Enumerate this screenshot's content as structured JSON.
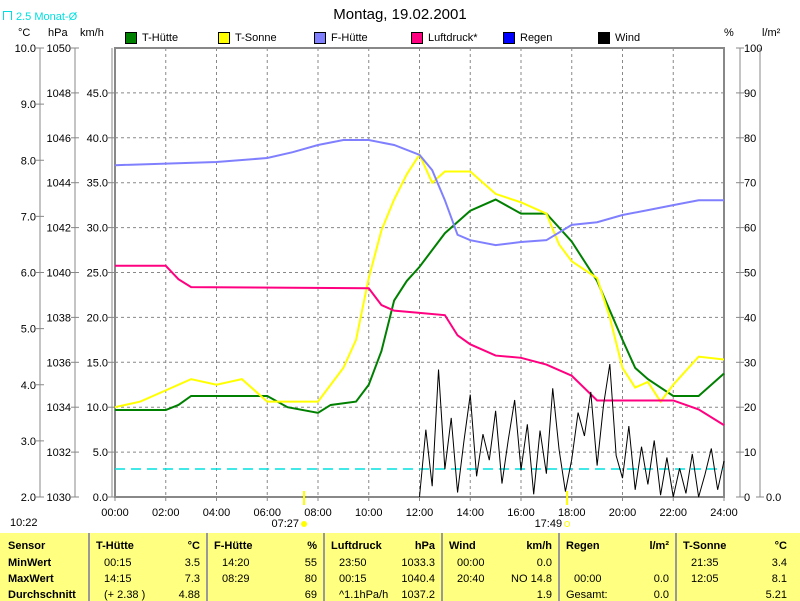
{
  "title": "Montag, 19.02.2001",
  "average_label": "2.5 Monat-Ø",
  "clock": "10:22",
  "units": {
    "temp": "°C",
    "pressure": "hPa",
    "wind": "km/h",
    "humidity": "%",
    "rain": "l/m²"
  },
  "legend": [
    {
      "label": "T-Hütte",
      "color": "#008000"
    },
    {
      "label": "T-Sonne",
      "color": "#ffff00"
    },
    {
      "label": "F-Hütte",
      "color": "#8080ff"
    },
    {
      "label": "Luftdruck*",
      "color": "#ff0080"
    },
    {
      "label": "Regen",
      "color": "#0000ff"
    },
    {
      "label": "Wind",
      "color": "#000000"
    }
  ],
  "sunrise": "07:27",
  "sunset": "17:49",
  "chart_data": {
    "type": "line",
    "title": "Montag, 19.02.2001",
    "x_ticks": [
      "00:00",
      "02:00",
      "04:00",
      "06:00",
      "08:00",
      "10:00",
      "12:00",
      "14:00",
      "16:00",
      "18:00",
      "20:00",
      "22:00",
      "24:00"
    ],
    "axes": {
      "temp": {
        "range": [
          2.0,
          10.0
        ],
        "ticks": [
          "10.0",
          "9.0",
          "8.0",
          "7.0",
          "6.0",
          "5.0",
          "4.0",
          "3.0",
          "2.0"
        ]
      },
      "pressure": {
        "range": [
          1030,
          1050
        ],
        "ticks": [
          "1050",
          "1048",
          "1046",
          "1044",
          "1042",
          "1040",
          "1038",
          "1036",
          "1034",
          "1032",
          "1030"
        ]
      },
      "wind": {
        "range": [
          0,
          50
        ],
        "ticks": [
          "45.0",
          "40.0",
          "35.0",
          "30.0",
          "25.0",
          "20.0",
          "15.0",
          "10.0",
          "5.0",
          "0.0"
        ]
      },
      "humidity": {
        "range": [
          0,
          100
        ],
        "ticks": [
          "100",
          "90",
          "80",
          "70",
          "60",
          "50",
          "40",
          "30",
          "20",
          "10",
          "0"
        ]
      },
      "rain": {
        "range": [
          0,
          1
        ],
        "ticks": [
          "0.0"
        ]
      }
    },
    "average_temp": 2.5,
    "series": [
      {
        "name": "T-Hütte",
        "axis": "temp",
        "color": "#008000",
        "x": [
          0,
          2,
          2.5,
          3,
          6,
          6.8,
          8,
          8.5,
          9.5,
          10,
          10.5,
          11,
          11.5,
          12,
          13,
          14,
          15,
          16,
          17,
          17.5,
          18,
          19,
          20,
          20.5,
          21,
          22,
          23,
          24
        ],
        "y": [
          3.55,
          3.55,
          3.64,
          3.8,
          3.8,
          3.6,
          3.5,
          3.64,
          3.7,
          4.0,
          4.6,
          5.5,
          5.85,
          6.1,
          6.7,
          7.1,
          7.3,
          7.05,
          7.05,
          6.8,
          6.55,
          5.85,
          4.8,
          4.3,
          4.1,
          3.8,
          3.8,
          4.2
        ]
      },
      {
        "name": "T-Sonne",
        "axis": "temp",
        "color": "#ffff00",
        "x": [
          0,
          1,
          2,
          3,
          4,
          5,
          6,
          7,
          8,
          9,
          9.5,
          10,
          10.5,
          11,
          11.5,
          12,
          12.5,
          13,
          14,
          15,
          16,
          17,
          17.5,
          18,
          19,
          19.5,
          20,
          20.5,
          21,
          21.5,
          22,
          23,
          24
        ],
        "y": [
          3.6,
          3.7,
          3.9,
          4.1,
          4.0,
          4.1,
          3.7,
          3.7,
          3.7,
          4.3,
          4.8,
          5.9,
          6.75,
          7.3,
          7.75,
          8.1,
          7.6,
          7.8,
          7.8,
          7.4,
          7.25,
          7.05,
          6.5,
          6.2,
          5.9,
          5.2,
          4.3,
          3.95,
          4.05,
          3.7,
          4.0,
          4.5,
          4.45
        ]
      },
      {
        "name": "F-Hütte",
        "axis": "humidity",
        "color": "#8080ff",
        "x": [
          0,
          4,
          6,
          7,
          8,
          9,
          10,
          11,
          12,
          12.5,
          13,
          13.5,
          14,
          15,
          16,
          17,
          18,
          19,
          20,
          21,
          22,
          23,
          24
        ],
        "y": [
          73.9,
          74.6,
          75.5,
          76.8,
          78.4,
          79.5,
          79.5,
          78.4,
          76.2,
          72.8,
          66.1,
          58.4,
          57.2,
          56.1,
          56.8,
          57.2,
          60.6,
          61.2,
          62.8,
          63.9,
          65.0,
          66.1,
          66.1
        ]
      },
      {
        "name": "Luftdruck*",
        "axis": "pressure",
        "color": "#ff0080",
        "x": [
          0,
          2,
          2.5,
          3,
          10,
          10.5,
          11,
          12,
          13,
          13.5,
          14,
          15,
          16,
          17,
          18,
          19,
          20,
          21,
          22,
          23,
          24
        ],
        "y": [
          1040.3,
          1040.3,
          1039.7,
          1039.35,
          1039.3,
          1038.55,
          1038.3,
          1038.2,
          1038.1,
          1037.2,
          1036.8,
          1036.3,
          1036.2,
          1035.9,
          1035.4,
          1034.3,
          1034.3,
          1034.3,
          1034.3,
          1033.9,
          1033.2
        ]
      },
      {
        "name": "Wind",
        "axis": "wind",
        "color": "#000000",
        "x": [
          12,
          12.25,
          12.5,
          12.75,
          13,
          13.25,
          13.5,
          13.75,
          14,
          14.25,
          14.5,
          14.75,
          15,
          15.25,
          15.5,
          15.75,
          16,
          16.25,
          16.5,
          16.75,
          17,
          17.25,
          17.5,
          17.75,
          18,
          18.25,
          18.5,
          18.75,
          19,
          19.25,
          19.5,
          19.75,
          20,
          20.25,
          20.5,
          20.75,
          21,
          21.25,
          21.5,
          21.75,
          22,
          22.25,
          22.5,
          22.75,
          23,
          23.25,
          23.5,
          23.75,
          24
        ],
        "y": [
          0,
          7.5,
          1.2,
          14.2,
          3.1,
          8.8,
          0.5,
          6.2,
          11.4,
          2.3,
          7.0,
          4.1,
          9.6,
          1.5,
          6.4,
          10.8,
          3.0,
          8.1,
          0.3,
          7.4,
          2.6,
          12.1,
          5.3,
          0.6,
          4.2,
          9.4,
          6.8,
          11.7,
          3.5,
          10.2,
          14.8,
          4.6,
          2.1,
          7.9,
          0.8,
          5.6,
          1.4,
          6.3,
          0.2,
          4.4,
          0.0,
          3.2,
          0.4,
          4.8,
          0.0,
          2.5,
          5.4,
          0.8,
          4.0
        ]
      }
    ]
  },
  "table": {
    "columns": [
      {
        "name": "sensor",
        "header": "Sensor",
        "unit": "",
        "rows": [
          [
            "MinWert",
            ""
          ],
          [
            "MaxWert",
            ""
          ],
          [
            "Durchschnitt",
            ""
          ]
        ]
      },
      {
        "name": "t-huette",
        "header": "T-Hütte",
        "unit": "°C",
        "rows": [
          [
            "00:15",
            "3.5"
          ],
          [
            "14:15",
            "7.3"
          ],
          [
            "(+ 2.38 )",
            "4.88"
          ]
        ]
      },
      {
        "name": "f-huette",
        "header": "F-Hütte",
        "unit": "%",
        "rows": [
          [
            "14:20",
            "55"
          ],
          [
            "08:29",
            "80"
          ],
          [
            "",
            "69"
          ]
        ]
      },
      {
        "name": "luftdruck",
        "header": "Luftdruck",
        "unit": "hPa",
        "rows": [
          [
            "23:50",
            "1033.3"
          ],
          [
            "00:15",
            "1040.4"
          ],
          [
            "^1.1hPa/h",
            "1037.2"
          ]
        ]
      },
      {
        "name": "wind",
        "header": "Wind",
        "unit": "km/h",
        "rows": [
          [
            "00:00",
            "0.0"
          ],
          [
            "20:40",
            "NO 14.8"
          ],
          [
            "",
            "1.9"
          ]
        ]
      },
      {
        "name": "regen",
        "header": "Regen",
        "unit": "l/m²",
        "rows": [
          [
            "",
            ""
          ],
          [
            "00:00",
            "0.0"
          ],
          [
            "Gesamt:",
            "0.0"
          ]
        ]
      },
      {
        "name": "t-sonne",
        "header": "T-Sonne",
        "unit": "°C",
        "rows": [
          [
            "21:35",
            "3.4"
          ],
          [
            "12:05",
            "8.1"
          ],
          [
            "",
            "5.21"
          ]
        ]
      }
    ]
  }
}
